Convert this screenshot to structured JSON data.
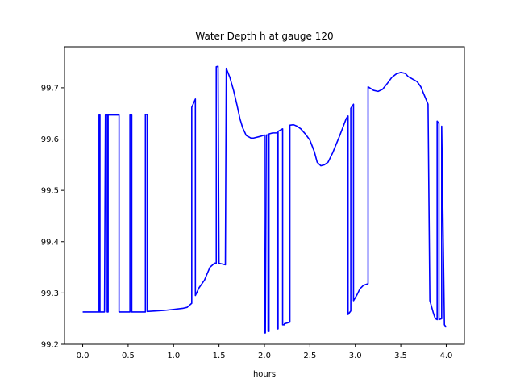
{
  "chart_data": {
    "type": "line",
    "title": "Water Depth h at gauge 120",
    "xlabel": "hours",
    "ylabel": "",
    "xlim": [
      -0.2,
      4.2
    ],
    "ylim": [
      99.2,
      99.78
    ],
    "xticks": [
      0.0,
      0.5,
      1.0,
      1.5,
      2.0,
      2.5,
      3.0,
      3.5,
      4.0
    ],
    "xtick_labels": [
      "0.0",
      "0.5",
      "1.0",
      "1.5",
      "2.0",
      "2.5",
      "3.0",
      "3.5",
      "4.0"
    ],
    "yticks": [
      99.2,
      99.3,
      99.4,
      99.5,
      99.6,
      99.7
    ],
    "ytick_labels": [
      "99.2",
      "99.3",
      "99.4",
      "99.5",
      "99.6",
      "99.7"
    ],
    "grid": false,
    "series": [
      {
        "color": "#0000ff",
        "x": [
          0.0,
          0.18,
          0.18,
          0.19,
          0.19,
          0.24,
          0.25,
          0.27,
          0.27,
          0.28,
          0.28,
          0.3,
          0.31,
          0.4,
          0.4,
          0.52,
          0.52,
          0.54,
          0.54,
          0.69,
          0.69,
          0.71,
          0.71,
          0.8,
          0.9,
          1.0,
          1.1,
          1.15,
          1.2,
          1.2,
          1.24,
          1.24,
          1.28,
          1.34,
          1.4,
          1.45,
          1.47,
          1.47,
          1.49,
          1.5,
          1.5,
          1.57,
          1.58,
          1.62,
          1.66,
          1.7,
          1.73,
          1.76,
          1.8,
          1.85,
          1.88,
          1.95,
          2.0,
          2.0,
          2.01,
          2.02,
          2.04,
          2.04,
          2.05,
          2.05,
          2.09,
          2.14,
          2.14,
          2.15,
          2.15,
          2.2,
          2.2,
          2.22,
          2.22,
          2.28,
          2.28,
          2.32,
          2.36,
          2.4,
          2.45,
          2.5,
          2.55,
          2.58,
          2.62,
          2.66,
          2.7,
          2.75,
          2.82,
          2.9,
          2.92,
          2.92,
          2.95,
          2.95,
          2.98,
          2.98,
          3.02,
          3.05,
          3.09,
          3.14,
          3.14,
          3.2,
          3.25,
          3.3,
          3.35,
          3.4,
          3.45,
          3.5,
          3.55,
          3.58,
          3.62,
          3.68,
          3.72,
          3.76,
          3.8,
          3.82,
          3.82,
          3.86,
          3.88,
          3.9,
          3.9,
          3.92,
          3.92,
          3.95,
          3.95,
          3.98,
          4.0
        ],
        "y": [
          99.263,
          99.263,
          99.647,
          99.647,
          99.263,
          99.263,
          99.647,
          99.647,
          99.263,
          99.263,
          99.647,
          99.647,
          99.647,
          99.647,
          99.263,
          99.263,
          99.647,
          99.647,
          99.263,
          99.263,
          99.648,
          99.648,
          99.264,
          99.265,
          99.266,
          99.268,
          99.27,
          99.272,
          99.28,
          99.662,
          99.678,
          99.295,
          99.31,
          99.325,
          99.35,
          99.358,
          99.358,
          99.741,
          99.742,
          99.358,
          99.358,
          99.355,
          99.738,
          99.72,
          99.695,
          99.665,
          99.64,
          99.622,
          99.607,
          99.602,
          99.602,
          99.605,
          99.608,
          99.222,
          99.222,
          99.608,
          99.608,
          99.225,
          99.225,
          99.61,
          99.612,
          99.612,
          99.23,
          99.23,
          99.615,
          99.62,
          99.238,
          99.238,
          99.24,
          99.243,
          99.627,
          99.628,
          99.625,
          99.62,
          99.61,
          99.598,
          99.575,
          99.555,
          99.548,
          99.55,
          99.555,
          99.573,
          99.603,
          99.64,
          99.645,
          99.258,
          99.265,
          99.66,
          99.668,
          99.285,
          99.297,
          99.308,
          99.315,
          99.318,
          99.702,
          99.695,
          99.693,
          99.697,
          99.708,
          99.72,
          99.727,
          99.73,
          99.728,
          99.722,
          99.718,
          99.712,
          99.702,
          99.685,
          99.668,
          99.285,
          99.285,
          99.26,
          99.25,
          99.248,
          99.635,
          99.63,
          99.248,
          99.25,
          99.625,
          99.238,
          99.233
        ]
      }
    ]
  }
}
